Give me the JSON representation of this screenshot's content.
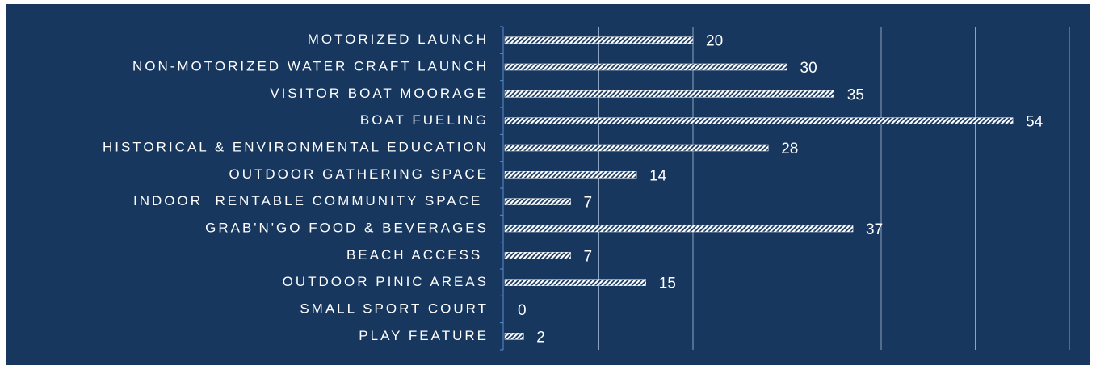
{
  "chart_data": {
    "type": "barh",
    "categories": [
      "MOTORIZED LAUNCH",
      "NON-MOTORIZED WATER CRAFT LAUNCH",
      "VISITOR BOAT MOORAGE",
      "BOAT FUELING",
      "HISTORICAL & ENVIRONMENTAL EDUCATION",
      "OUTDOOR GATHERING SPACE",
      "INDOOR  RENTABLE COMMUNITY SPACE ",
      "GRAB'N'GO FOOD & BEVERAGES",
      "BEACH ACCESS ",
      "OUTDOOR PINIC AREAS",
      "SMALL SPORT COURT",
      "PLAY FEATURE"
    ],
    "values": [
      20,
      30,
      35,
      54,
      28,
      14,
      7,
      37,
      7,
      15,
      0,
      2
    ],
    "color": "#ffffff",
    "xlim": [
      0,
      60
    ],
    "xticks": [
      0,
      10,
      20,
      30,
      40,
      50,
      60
    ],
    "grid": true
  }
}
